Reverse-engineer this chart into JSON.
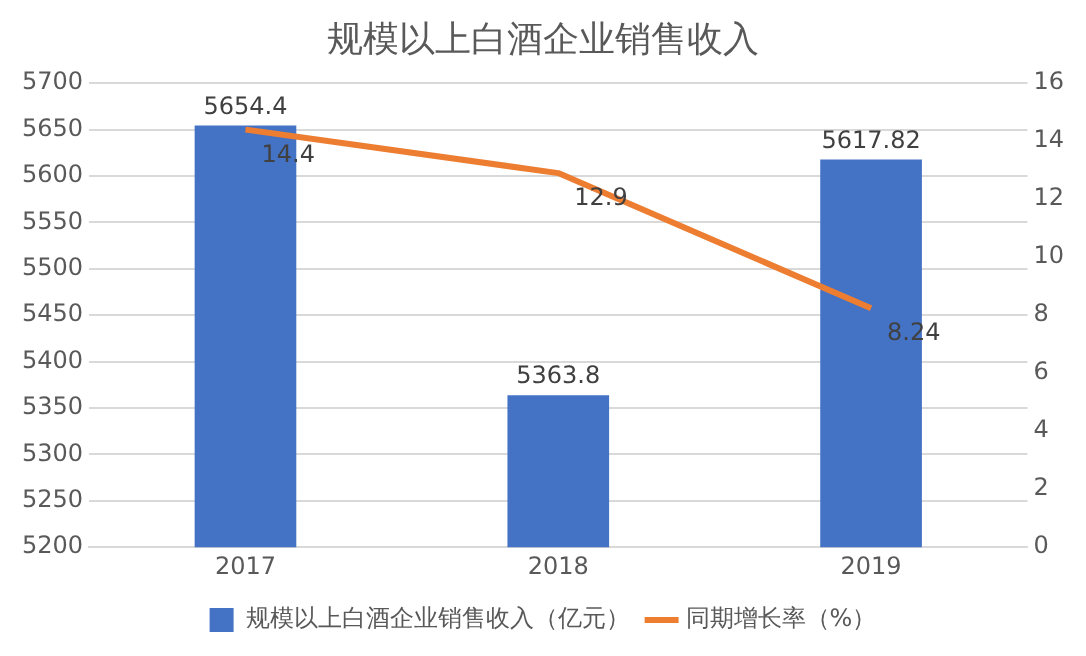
{
  "chart_data": {
    "type": "bar",
    "title": "规模以上白酒企业销售收入",
    "categories": [
      "2017",
      "2018",
      "2019"
    ],
    "series": [
      {
        "name": "规模以上白酒企业销售收入（亿元）",
        "color": "#4472c4",
        "values": [
          5654.4,
          5363.8,
          5617.82
        ]
      },
      {
        "name": "同期增长率（%）",
        "type": "line",
        "axis": "y2",
        "color": "#ed7d31",
        "values": [
          14.4,
          12.9,
          8.24
        ]
      }
    ],
    "ylim": [
      5200,
      5700
    ],
    "yticks": [
      5200,
      5250,
      5300,
      5350,
      5400,
      5450,
      5500,
      5550,
      5600,
      5650,
      5700
    ],
    "y2lim": [
      0,
      16
    ],
    "y2ticks": [
      0,
      2,
      4,
      6,
      8,
      10,
      12,
      14,
      16
    ],
    "grid": "y",
    "legend": "bottom",
    "data_labels": true,
    "marker": "none",
    "line_style": "solid"
  }
}
